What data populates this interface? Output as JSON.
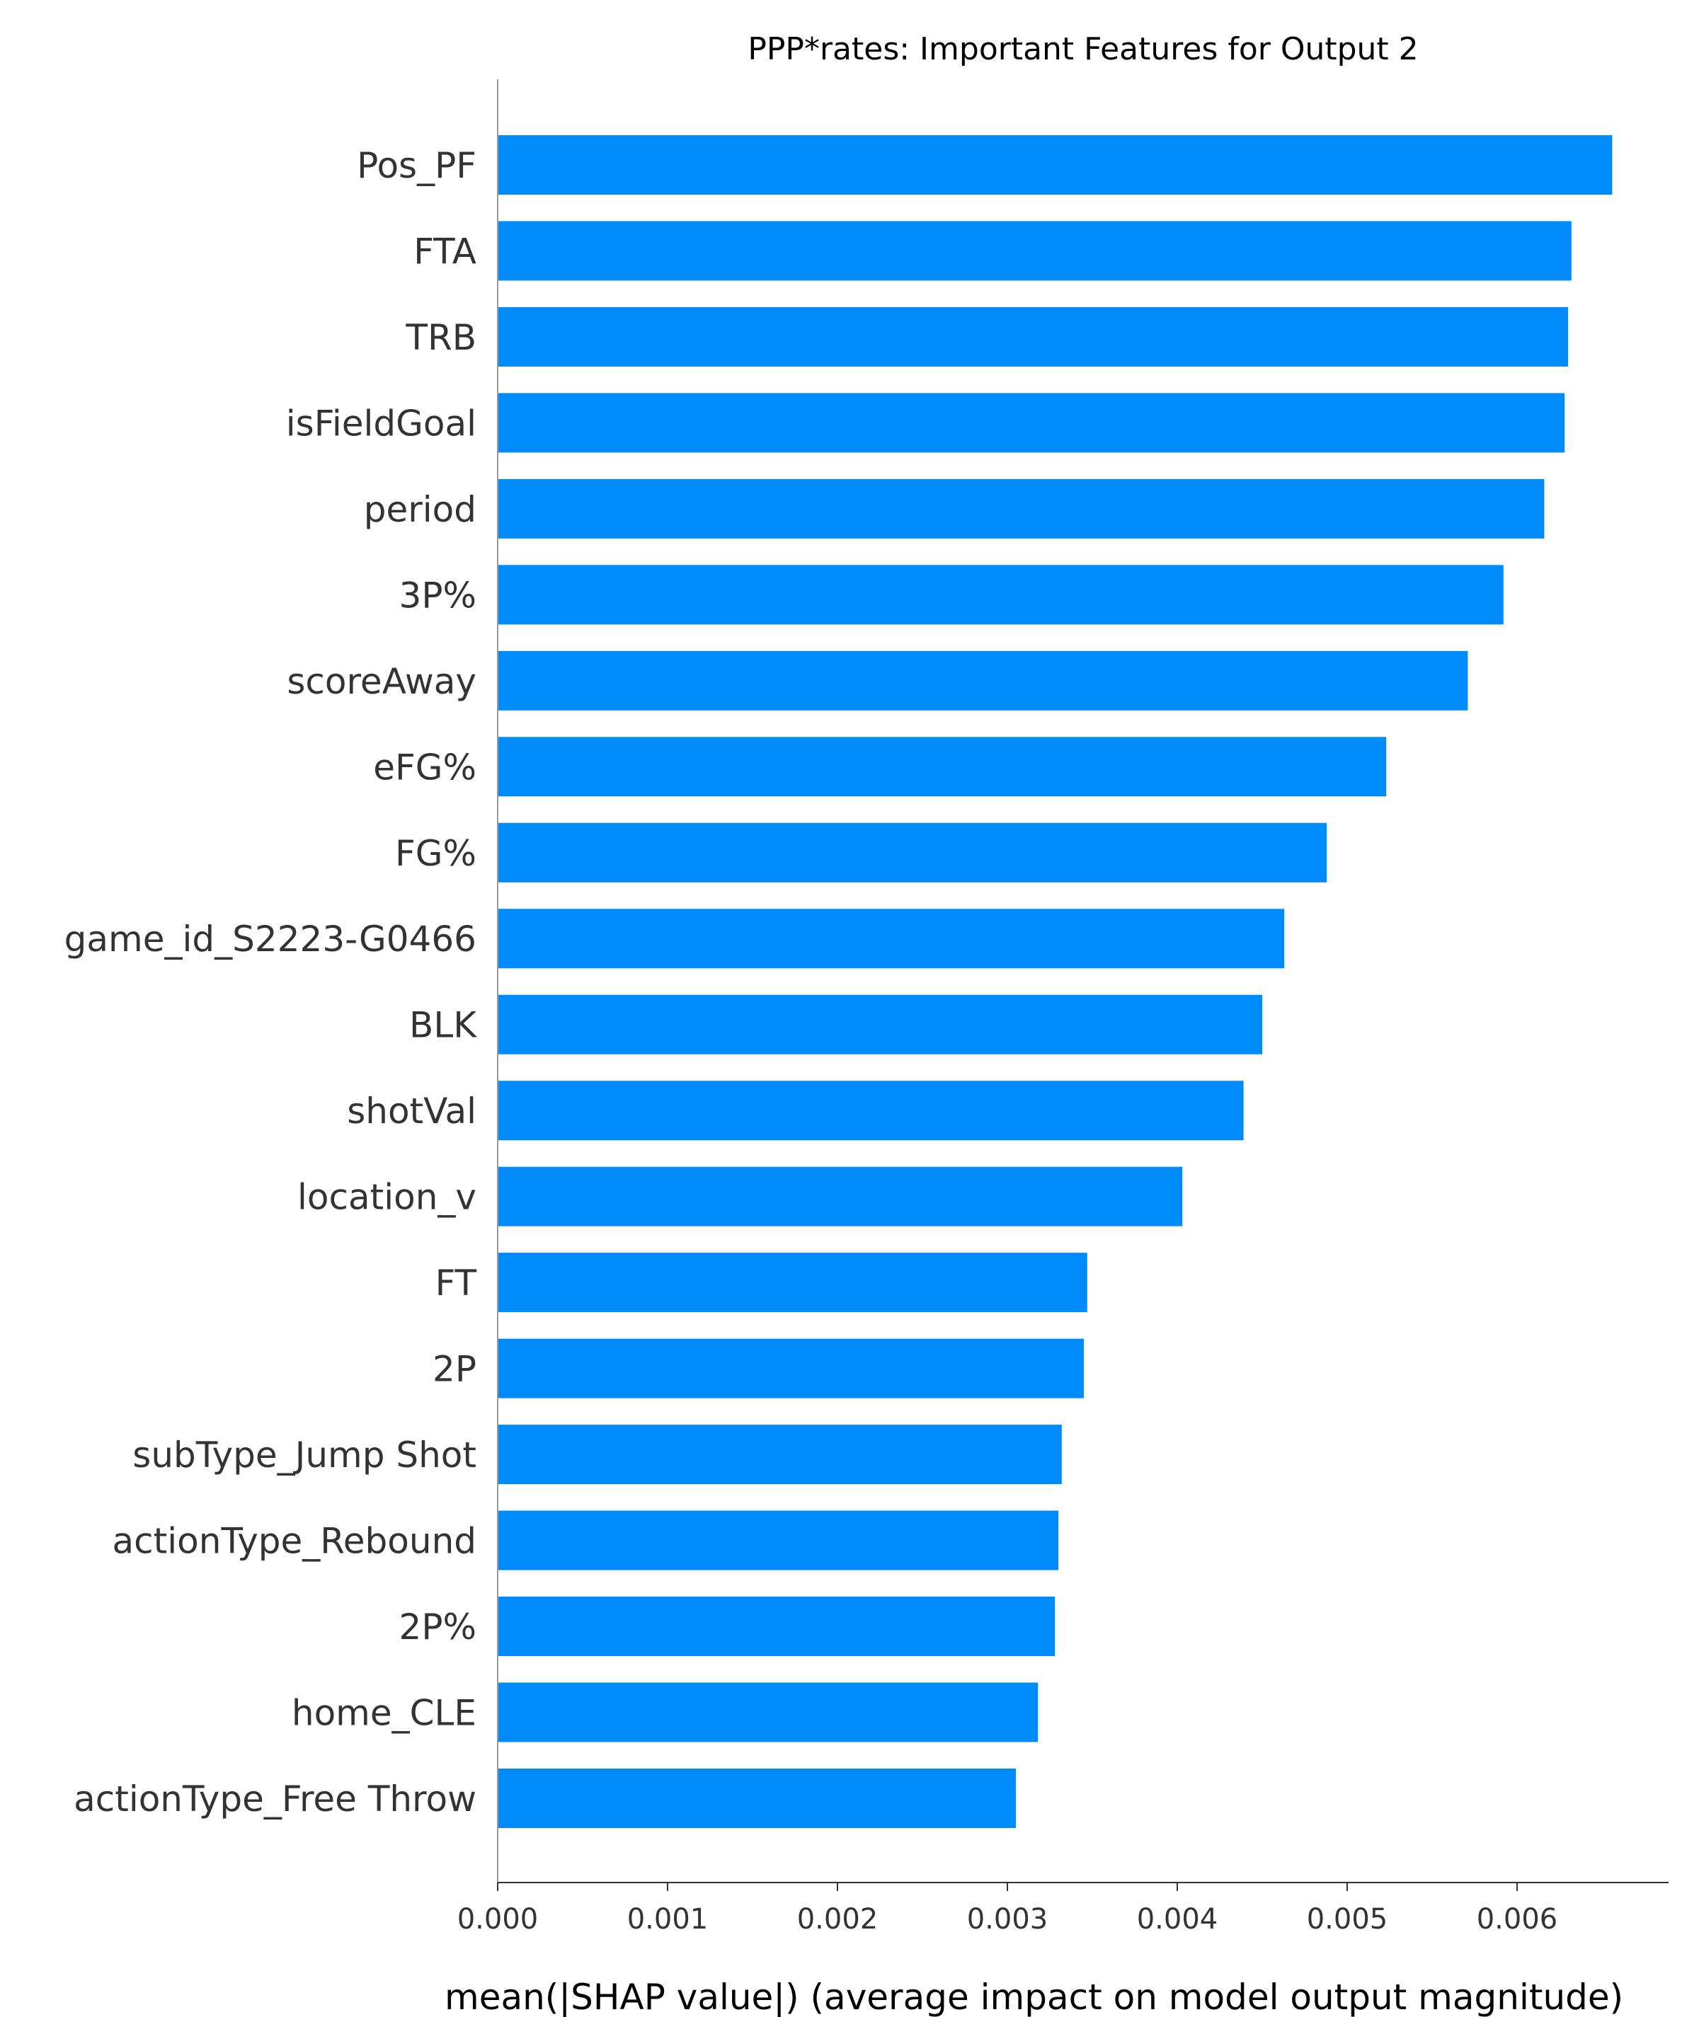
{
  "chart_data": {
    "type": "bar",
    "orientation": "horizontal",
    "title": "PPP*rates: Important Features for Output 2",
    "xlabel": "mean(|SHAP value|) (average impact on model output magnitude)",
    "ylabel": "",
    "xlim": [
      0,
      0.0069
    ],
    "xticks": [
      "0.000",
      "0.001",
      "0.002",
      "0.003",
      "0.004",
      "0.005",
      "0.006"
    ],
    "bar_color": "#008bfb",
    "grid": false,
    "categories": [
      "Pos_PF",
      "FTA",
      "TRB",
      "isFieldGoal",
      "period",
      "3P%",
      "scoreAway",
      "eFG%",
      "FG%",
      "game_id_S2223-G0466",
      "BLK",
      "shotVal",
      "location_v",
      "FT",
      "2P",
      "subType_Jump Shot",
      "actionType_Rebound",
      "2P%",
      "home_CLE",
      "actionType_Free Throw"
    ],
    "values": [
      0.00656,
      0.00632,
      0.0063,
      0.00628,
      0.00616,
      0.00592,
      0.00571,
      0.00523,
      0.00488,
      0.00463,
      0.0045,
      0.00439,
      0.00403,
      0.00347,
      0.00345,
      0.00332,
      0.0033,
      0.00328,
      0.00318,
      0.00305
    ]
  }
}
